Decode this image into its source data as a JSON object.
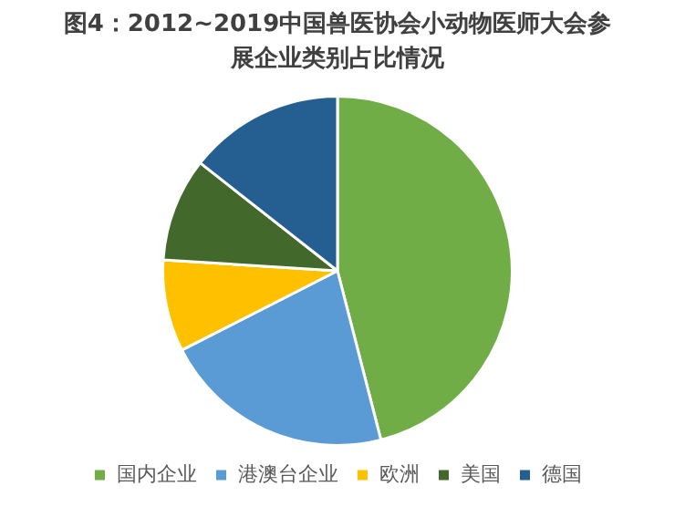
{
  "chart_data": {
    "type": "pie",
    "title": "图4：2012~2019中国兽医协会小动物医师大会参展企业类别占比情况",
    "categories": [
      "国内企业",
      "港澳台企业",
      "欧洲",
      "美国",
      "德国"
    ],
    "values": [
      46,
      21.5,
      8.5,
      9.6,
      14.4
    ],
    "colors": [
      "#70ad47",
      "#5b9bd5",
      "#ffc000",
      "#43682b",
      "#255e91"
    ],
    "legend": "bottom"
  }
}
